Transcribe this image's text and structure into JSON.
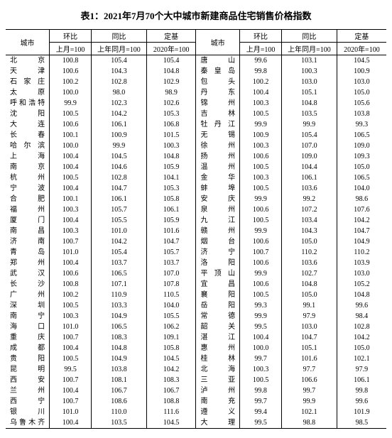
{
  "title": "表1：2021年7月70个大中城市新建商品住宅销售价格指数",
  "headers": {
    "city": "城市",
    "hb": "环比",
    "tb": "同比",
    "dj": "定基",
    "hb_sub": "上月=100",
    "tb_sub": "上年同月=100",
    "dj_sub": "2020年=100"
  },
  "rows": [
    {
      "c1": "北　　京",
      "v1": "100.8",
      "v2": "105.4",
      "v3": "105.4",
      "c2": "唐　　山",
      "v4": "99.6",
      "v5": "103.1",
      "v6": "104.5"
    },
    {
      "c1": "天　　津",
      "v1": "100.6",
      "v2": "104.3",
      "v3": "104.8",
      "c2": "秦 皇 岛",
      "v4": "99.8",
      "v5": "100.3",
      "v6": "100.9"
    },
    {
      "c1": "石 家 庄",
      "v1": "100.2",
      "v2": "102.8",
      "v3": "102.9",
      "c2": "包　　头",
      "v4": "100.2",
      "v5": "103.0",
      "v6": "103.0"
    },
    {
      "c1": "太　　原",
      "v1": "100.0",
      "v2": "98.0",
      "v3": "98.9",
      "c2": "丹　　东",
      "v4": "100.4",
      "v5": "105.1",
      "v6": "105.0"
    },
    {
      "c1": "呼和浩特",
      "v1": "99.9",
      "v2": "102.3",
      "v3": "102.6",
      "c2": "锦　　州",
      "v4": "100.3",
      "v5": "104.8",
      "v6": "105.6"
    },
    {
      "c1": "沈　　阳",
      "v1": "100.5",
      "v2": "104.2",
      "v3": "105.3",
      "c2": "吉　　林",
      "v4": "100.5",
      "v5": "103.5",
      "v6": "103.8"
    },
    {
      "c1": "大　　连",
      "v1": "100.6",
      "v2": "106.1",
      "v3": "106.8",
      "c2": "牡 丹 江",
      "v4": "99.9",
      "v5": "99.9",
      "v6": "99.3"
    },
    {
      "c1": "长　　春",
      "v1": "100.1",
      "v2": "100.9",
      "v3": "101.5",
      "c2": "无　　锡",
      "v4": "100.9",
      "v5": "105.4",
      "v6": "106.5"
    },
    {
      "c1": "哈 尔 滨",
      "v1": "100.0",
      "v2": "99.9",
      "v3": "100.3",
      "c2": "徐　　州",
      "v4": "100.3",
      "v5": "107.0",
      "v6": "109.0"
    },
    {
      "c1": "上　　海",
      "v1": "100.4",
      "v2": "104.5",
      "v3": "104.8",
      "c2": "扬　　州",
      "v4": "100.6",
      "v5": "109.0",
      "v6": "109.3"
    },
    {
      "c1": "南　　京",
      "v1": "100.4",
      "v2": "104.6",
      "v3": "105.9",
      "c2": "温　　州",
      "v4": "100.5",
      "v5": "104.4",
      "v6": "105.0"
    },
    {
      "c1": "杭　　州",
      "v1": "100.5",
      "v2": "102.8",
      "v3": "104.1",
      "c2": "金　　华",
      "v4": "100.3",
      "v5": "106.1",
      "v6": "106.5"
    },
    {
      "c1": "宁　　波",
      "v1": "100.4",
      "v2": "104.7",
      "v3": "105.3",
      "c2": "蚌　　埠",
      "v4": "100.5",
      "v5": "103.6",
      "v6": "104.0"
    },
    {
      "c1": "合　　肥",
      "v1": "100.1",
      "v2": "106.1",
      "v3": "105.8",
      "c2": "安　　庆",
      "v4": "99.9",
      "v5": "99.2",
      "v6": "98.6"
    },
    {
      "c1": "福　　州",
      "v1": "100.3",
      "v2": "105.7",
      "v3": "106.1",
      "c2": "泉　　州",
      "v4": "100.6",
      "v5": "107.2",
      "v6": "107.6"
    },
    {
      "c1": "厦　　门",
      "v1": "100.4",
      "v2": "105.5",
      "v3": "105.9",
      "c2": "九　　江",
      "v4": "100.5",
      "v5": "103.4",
      "v6": "104.2"
    },
    {
      "c1": "南　　昌",
      "v1": "100.3",
      "v2": "101.0",
      "v3": "101.6",
      "c2": "赣　　州",
      "v4": "99.9",
      "v5": "104.3",
      "v6": "104.7"
    },
    {
      "c1": "济　　南",
      "v1": "100.7",
      "v2": "104.2",
      "v3": "104.7",
      "c2": "烟　　台",
      "v4": "100.6",
      "v5": "105.0",
      "v6": "104.9"
    },
    {
      "c1": "青　　岛",
      "v1": "101.0",
      "v2": "105.4",
      "v3": "105.7",
      "c2": "济　　宁",
      "v4": "100.7",
      "v5": "110.2",
      "v6": "110.2"
    },
    {
      "c1": "郑　　州",
      "v1": "100.4",
      "v2": "103.7",
      "v3": "103.7",
      "c2": "洛　　阳",
      "v4": "100.6",
      "v5": "103.6",
      "v6": "103.9"
    },
    {
      "c1": "武　　汉",
      "v1": "100.6",
      "v2": "106.5",
      "v3": "107.0",
      "c2": "平 顶 山",
      "v4": "99.9",
      "v5": "102.7",
      "v6": "103.0"
    },
    {
      "c1": "长　　沙",
      "v1": "100.8",
      "v2": "107.1",
      "v3": "107.8",
      "c2": "宜　　昌",
      "v4": "100.6",
      "v5": "104.8",
      "v6": "105.2"
    },
    {
      "c1": "广　　州",
      "v1": "100.2",
      "v2": "110.9",
      "v3": "110.5",
      "c2": "襄　　阳",
      "v4": "100.5",
      "v5": "105.0",
      "v6": "104.8"
    },
    {
      "c1": "深　　圳",
      "v1": "100.5",
      "v2": "103.3",
      "v3": "104.0",
      "c2": "岳　　阳",
      "v4": "99.3",
      "v5": "99.1",
      "v6": "99.6"
    },
    {
      "c1": "南　　宁",
      "v1": "100.3",
      "v2": "104.9",
      "v3": "105.5",
      "c2": "常　　德",
      "v4": "99.9",
      "v5": "97.9",
      "v6": "98.4"
    },
    {
      "c1": "海　　口",
      "v1": "101.0",
      "v2": "106.5",
      "v3": "106.2",
      "c2": "韶　　关",
      "v4": "99.5",
      "v5": "103.0",
      "v6": "102.8"
    },
    {
      "c1": "重　　庆",
      "v1": "100.7",
      "v2": "108.3",
      "v3": "109.1",
      "c2": "湛　　江",
      "v4": "100.4",
      "v5": "104.7",
      "v6": "104.2"
    },
    {
      "c1": "成　　都",
      "v1": "100.4",
      "v2": "104.8",
      "v3": "105.8",
      "c2": "惠　　州",
      "v4": "100.0",
      "v5": "105.1",
      "v6": "105.0"
    },
    {
      "c1": "贵　　阳",
      "v1": "100.5",
      "v2": "104.9",
      "v3": "104.5",
      "c2": "桂　　林",
      "v4": "99.7",
      "v5": "101.6",
      "v6": "102.1"
    },
    {
      "c1": "昆　　明",
      "v1": "99.5",
      "v2": "103.8",
      "v3": "104.2",
      "c2": "北　　海",
      "v4": "100.3",
      "v5": "97.7",
      "v6": "97.9"
    },
    {
      "c1": "西　　安",
      "v1": "100.7",
      "v2": "108.1",
      "v3": "108.3",
      "c2": "三　　亚",
      "v4": "100.5",
      "v5": "106.6",
      "v6": "106.1"
    },
    {
      "c1": "兰　　州",
      "v1": "100.4",
      "v2": "106.7",
      "v3": "106.7",
      "c2": "泸　　州",
      "v4": "99.8",
      "v5": "99.7",
      "v6": "99.8"
    },
    {
      "c1": "西　　宁",
      "v1": "100.7",
      "v2": "108.6",
      "v3": "108.8",
      "c2": "南　　充",
      "v4": "99.7",
      "v5": "99.9",
      "v6": "99.6"
    },
    {
      "c1": "银　　川",
      "v1": "101.0",
      "v2": "110.0",
      "v3": "111.6",
      "c2": "遵　　义",
      "v4": "99.4",
      "v5": "102.1",
      "v6": "101.9"
    },
    {
      "c1": "乌鲁木齐",
      "v1": "100.4",
      "v2": "103.5",
      "v3": "104.5",
      "c2": "大　　理",
      "v4": "99.5",
      "v5": "98.8",
      "v6": "98.5"
    }
  ]
}
